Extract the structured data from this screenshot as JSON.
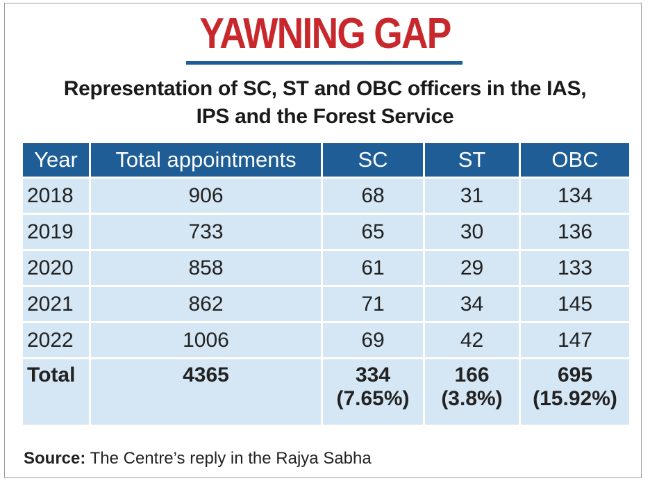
{
  "title": "YAWNING GAP",
  "subtitle_line1": "Representation of SC, ST and OBC officers in the IAS,",
  "subtitle_line2": "IPS and the Forest Service",
  "source_label": "Source:",
  "source_text": "The Centre’s reply in the Rajya Sabha",
  "colors": {
    "title": "#c8282c",
    "header": "#1f5d96",
    "cell": "#d5e7f4"
  },
  "chart_data": {
    "type": "table",
    "title": "YAWNING GAP",
    "columns": [
      "Year",
      "Total appointments",
      "SC",
      "ST",
      "OBC"
    ],
    "rows": [
      [
        "2018",
        "906",
        "68",
        "31",
        "134"
      ],
      [
        "2019",
        "733",
        "65",
        "30",
        "136"
      ],
      [
        "2020",
        "858",
        "61",
        "29",
        "133"
      ],
      [
        "2021",
        "862",
        "71",
        "34",
        "145"
      ],
      [
        "2022",
        "1006",
        "69",
        "42",
        "147"
      ]
    ],
    "total": {
      "label": "Total",
      "appointments": "4365",
      "sc": "334",
      "sc_pct": "(7.65%)",
      "st": "166",
      "st_pct": "(3.8%)",
      "obc": "695",
      "obc_pct": "(15.92%)"
    }
  }
}
